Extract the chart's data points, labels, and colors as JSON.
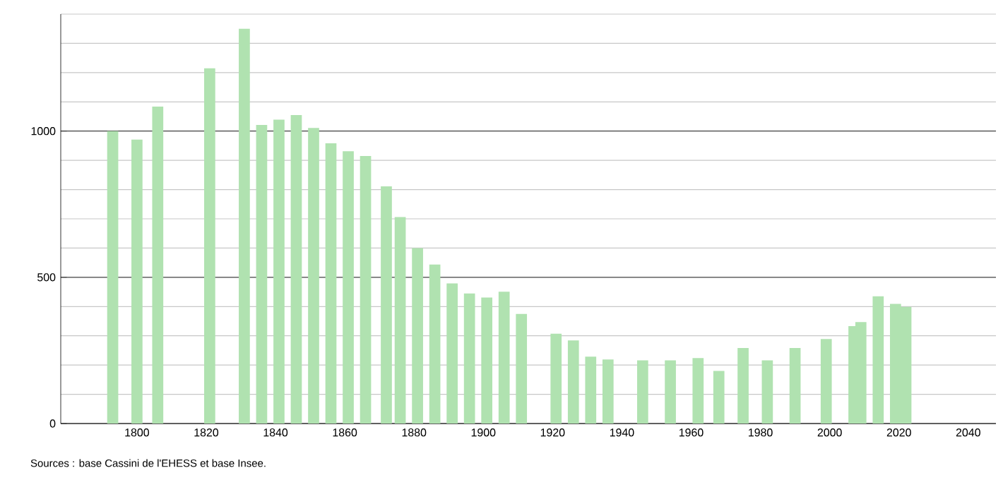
{
  "chart_data": {
    "type": "bar",
    "x": [
      1793,
      1800,
      1806,
      1821,
      1831,
      1836,
      1841,
      1846,
      1851,
      1856,
      1861,
      1866,
      1872,
      1876,
      1881,
      1886,
      1891,
      1896,
      1901,
      1906,
      1911,
      1921,
      1926,
      1931,
      1936,
      1946,
      1954,
      1962,
      1968,
      1975,
      1982,
      1990,
      1999,
      2007,
      2009,
      2014,
      2019,
      2022
    ],
    "values": [
      1000,
      971,
      1084,
      1215,
      1350,
      1021,
      1039,
      1055,
      1011,
      958,
      931,
      915,
      811,
      706,
      600,
      544,
      479,
      445,
      431,
      451,
      375,
      307,
      284,
      229,
      219,
      216,
      216,
      224,
      180,
      258,
      216,
      258,
      289,
      333,
      347,
      435,
      409,
      399
    ],
    "color": "#b0e2b0",
    "xlim": [
      1778,
      2048
    ],
    "xticks": [
      1800,
      1820,
      1840,
      1860,
      1880,
      1900,
      1920,
      1940,
      1960,
      1980,
      2000,
      2020,
      2040
    ],
    "ylim": [
      0,
      1400
    ],
    "yticks": [
      0,
      {
        "value": 100,
        "label": null
      },
      {
        "value": 200,
        "label": null
      },
      {
        "value": 300,
        "label": null
      },
      {
        "value": 400,
        "label": null
      },
      500,
      {
        "value": 600,
        "label": null
      },
      {
        "value": 700,
        "label": null
      },
      {
        "value": 800,
        "label": null
      },
      {
        "value": 900,
        "label": null
      },
      1000,
      {
        "value": 1100,
        "label": null
      },
      {
        "value": 1200,
        "label": null
      },
      {
        "value": 1300,
        "label": null
      },
      {
        "value": 1400,
        "label": null
      }
    ],
    "grid": "y",
    "annotations": [
      "Sources : base Cassini de l'EHESS et base Insee."
    ]
  }
}
